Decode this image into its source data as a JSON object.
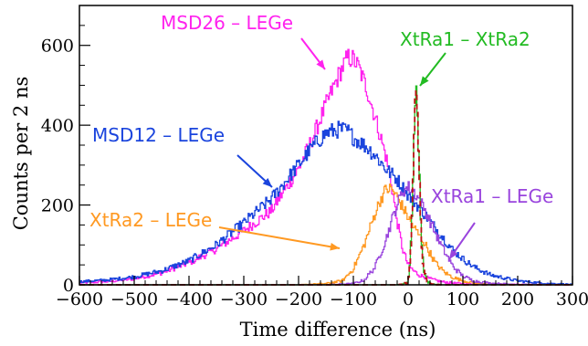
{
  "chart_data": {
    "type": "line",
    "title": "",
    "xlabel": "Time difference (ns)",
    "ylabel": "Counts per 2 ns",
    "xlim": [
      -600,
      300
    ],
    "ylim": [
      0,
      700
    ],
    "x_ticks": [
      -600,
      -500,
      -400,
      -300,
      -200,
      -100,
      0,
      100,
      200,
      300
    ],
    "x_tick_labels": [
      "−600",
      "−500",
      "−400",
      "−300",
      "−200",
      "−100",
      "0",
      "100",
      "200",
      "300"
    ],
    "y_ticks": [
      0,
      200,
      400,
      600
    ],
    "y_tick_labels": [
      "0",
      "200",
      "400",
      "600"
    ],
    "grid": false,
    "legend": "none",
    "series": [
      {
        "name": "MSD26 – LEGe",
        "color": "#ff22ee",
        "x": [
          -600,
          -550,
          -500,
          -450,
          -400,
          -350,
          -300,
          -250,
          -200,
          -175,
          -150,
          -125,
          -110,
          -100,
          -90,
          -75,
          -60,
          -50,
          -40,
          -30,
          -20,
          -10,
          0,
          10,
          20,
          40,
          60,
          80,
          100,
          150,
          200,
          300
        ],
        "y": [
          5,
          8,
          15,
          30,
          55,
          90,
          135,
          185,
          290,
          365,
          450,
          530,
          570,
          565,
          545,
          490,
          420,
          370,
          320,
          250,
          160,
          90,
          50,
          35,
          25,
          15,
          8,
          5,
          3,
          2,
          1,
          0
        ]
      },
      {
        "name": "MSD12 – LEGe",
        "color": "#1a44dd",
        "x": [
          -600,
          -550,
          -500,
          -450,
          -400,
          -350,
          -300,
          -250,
          -200,
          -175,
          -150,
          -125,
          -110,
          -100,
          -75,
          -60,
          -40,
          -20,
          0,
          20,
          40,
          60,
          80,
          100,
          120,
          150,
          200,
          250,
          300
        ],
        "y": [
          8,
          12,
          20,
          35,
          60,
          100,
          155,
          215,
          300,
          345,
          380,
          390,
          385,
          370,
          345,
          325,
          290,
          265,
          225,
          195,
          160,
          125,
          90,
          65,
          45,
          25,
          10,
          4,
          1
        ]
      },
      {
        "name": "XtRa2 – LEGe",
        "color": "#ff9922",
        "x": [
          -600,
          -200,
          -150,
          -120,
          -100,
          -80,
          -70,
          -60,
          -50,
          -40,
          -30,
          -20,
          -10,
          0,
          10,
          20,
          30,
          40,
          50,
          60,
          70,
          80,
          100,
          120,
          150,
          200,
          300
        ],
        "y": [
          0,
          0,
          3,
          10,
          40,
          100,
          140,
          180,
          215,
          240,
          240,
          220,
          195,
          170,
          145,
          125,
          105,
          80,
          55,
          40,
          28,
          20,
          10,
          5,
          2,
          0,
          0
        ]
      },
      {
        "name": "XtRa1 – LEGe",
        "color": "#9944dd",
        "x": [
          -600,
          -150,
          -100,
          -80,
          -60,
          -50,
          -40,
          -30,
          -20,
          -10,
          0,
          10,
          20,
          30,
          40,
          50,
          60,
          70,
          80,
          90,
          100,
          120,
          150,
          200,
          300
        ],
        "y": [
          0,
          0,
          3,
          12,
          45,
          80,
          115,
          160,
          200,
          235,
          245,
          235,
          215,
          190,
          160,
          130,
          100,
          75,
          50,
          35,
          22,
          10,
          4,
          1,
          0
        ]
      },
      {
        "name": "XtRa1 – XtRa2",
        "color": "#22bb22",
        "x": [
          -600,
          -20,
          -10,
          0,
          4,
          8,
          12,
          14,
          16,
          20,
          24,
          28,
          35,
          45,
          60,
          300
        ],
        "y": [
          0,
          0,
          2,
          8,
          60,
          220,
          420,
          480,
          470,
          310,
          130,
          40,
          8,
          2,
          0,
          0
        ]
      },
      {
        "name": "",
        "color": "#bb1111",
        "dashed": true,
        "x": [
          -600,
          -20,
          -10,
          0,
          4,
          8,
          12,
          14,
          16,
          20,
          24,
          28,
          35,
          45,
          60,
          300
        ],
        "y": [
          0,
          0,
          2,
          6,
          55,
          215,
          415,
          485,
          465,
          300,
          125,
          38,
          7,
          1,
          0,
          0
        ]
      }
    ],
    "annotations": [
      {
        "text": "MSD26 – LEGe",
        "color": "#ff22ee"
      },
      {
        "text": "XtRa1 – XtRa2",
        "color": "#22bb22"
      },
      {
        "text": "MSD12 – LEGe",
        "color": "#1a44dd"
      },
      {
        "text": "XtRa1 – LEGe",
        "color": "#9944dd"
      },
      {
        "text": "XtRa2 – LEGe",
        "color": "#ff9922"
      }
    ]
  }
}
